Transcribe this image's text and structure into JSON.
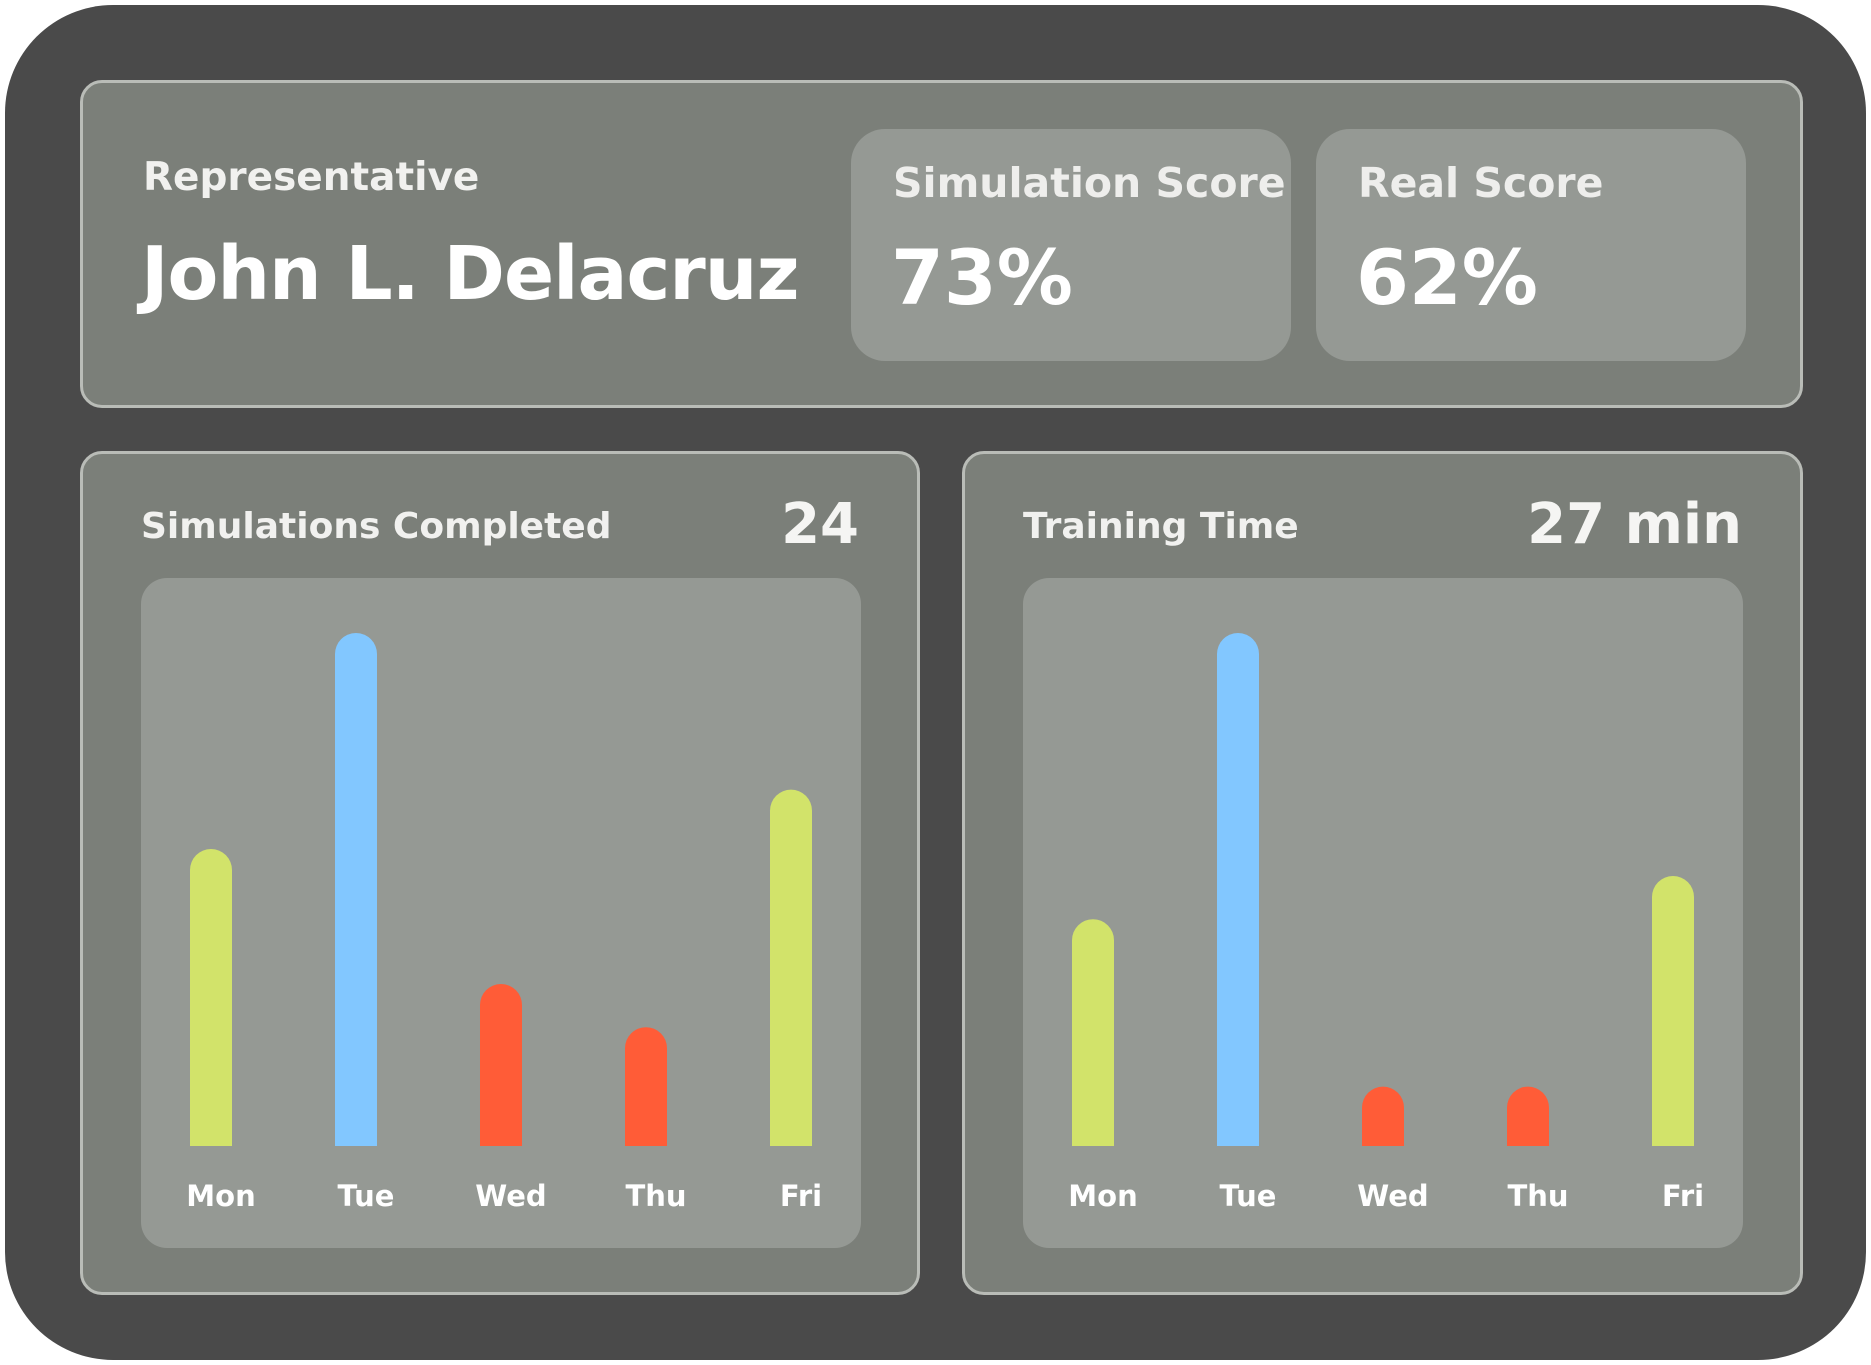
{
  "header": {
    "representative_label": "Representative",
    "representative_name": "John L. Delacruz",
    "simulation_score": {
      "label": "Simulation Score",
      "value": "73%"
    },
    "real_score": {
      "label": "Real Score",
      "value": "62%"
    }
  },
  "panels": {
    "simulations": {
      "title": "Simulations Completed",
      "total": "24"
    },
    "training": {
      "title": "Training Time",
      "total": "27 min"
    }
  },
  "colors": {
    "green": "#d2e36a",
    "blue": "#82c7ff",
    "red": "#ff5c37"
  },
  "chart_data": [
    {
      "type": "bar",
      "categories": [
        "Mon",
        "Tue",
        "Wed",
        "Thu",
        "Fri"
      ],
      "values": [
        5.5,
        9.5,
        3,
        2.2,
        6.6
      ],
      "colors": [
        "#d2e36a",
        "#82c7ff",
        "#ff5c37",
        "#ff5c37",
        "#d2e36a"
      ],
      "ylim": [
        0,
        10
      ],
      "grid": false
    },
    {
      "type": "bar",
      "categories": [
        "Mon",
        "Tue",
        "Wed",
        "Thu",
        "Fri"
      ],
      "values": [
        4.2,
        9.5,
        1.1,
        1.1,
        5.0
      ],
      "colors": [
        "#d2e36a",
        "#82c7ff",
        "#ff5c37",
        "#ff5c37",
        "#d2e36a"
      ],
      "ylim": [
        0,
        10
      ],
      "grid": false
    }
  ]
}
